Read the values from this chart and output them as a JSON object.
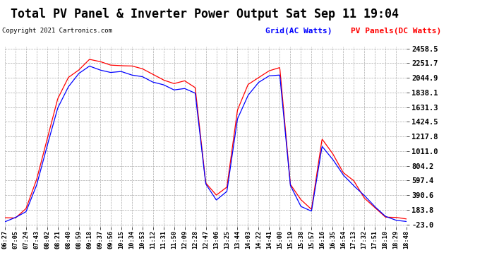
{
  "title": "Total PV Panel & Inverter Power Output Sat Sep 11 19:04",
  "copyright": "Copyright 2021 Cartronics.com",
  "legend_blue": "Grid(AC Watts)",
  "legend_red": "PV Panels(DC Watts)",
  "yticks": [
    2458.5,
    2251.7,
    2044.9,
    1838.1,
    1631.3,
    1424.5,
    1217.8,
    1011.0,
    804.2,
    597.4,
    390.6,
    183.8,
    -23.0
  ],
  "ymin": -23.0,
  "ymax": 2458.5,
  "background_color": "#ffffff",
  "plot_bg_color": "#ffffff",
  "grid_color": "#aaaaaa",
  "line_blue": "#0000ff",
  "line_red": "#ff0000",
  "xtick_labels": [
    "06:27",
    "07:05",
    "07:24",
    "07:43",
    "08:02",
    "08:21",
    "08:40",
    "08:59",
    "09:18",
    "09:37",
    "09:56",
    "10:15",
    "10:34",
    "10:53",
    "11:12",
    "11:31",
    "11:50",
    "12:09",
    "12:28",
    "12:47",
    "13:06",
    "13:25",
    "13:44",
    "14:03",
    "14:22",
    "14:41",
    "15:00",
    "15:19",
    "15:38",
    "15:57",
    "16:16",
    "16:35",
    "16:54",
    "17:13",
    "17:32",
    "17:51",
    "18:10",
    "18:29",
    "18:48"
  ],
  "key_times": [
    0,
    1,
    2,
    3,
    4,
    5,
    6,
    7,
    8,
    9,
    10,
    11,
    12,
    13,
    14,
    15,
    16,
    17,
    18,
    19,
    20,
    21,
    22,
    23,
    24,
    25,
    26,
    27,
    28,
    29,
    30,
    31,
    32,
    33,
    34,
    35,
    36,
    37,
    38
  ],
  "key_vals_pv": [
    30,
    80,
    200,
    600,
    1200,
    1750,
    2050,
    2200,
    2280,
    2260,
    2240,
    2220,
    2200,
    2180,
    2100,
    2050,
    1950,
    2000,
    1900,
    600,
    350,
    500,
    1600,
    1900,
    2050,
    2180,
    2200,
    600,
    300,
    200,
    1200,
    950,
    750,
    580,
    400,
    230,
    110,
    40,
    10
  ],
  "key_vals_ac": [
    20,
    60,
    160,
    520,
    1100,
    1650,
    1950,
    2100,
    2170,
    2150,
    2130,
    2100,
    2080,
    2060,
    1980,
    1950,
    1880,
    1920,
    1820,
    550,
    300,
    450,
    1500,
    1800,
    1950,
    2080,
    2100,
    550,
    250,
    170,
    1100,
    870,
    680,
    520,
    360,
    200,
    95,
    30,
    5
  ]
}
